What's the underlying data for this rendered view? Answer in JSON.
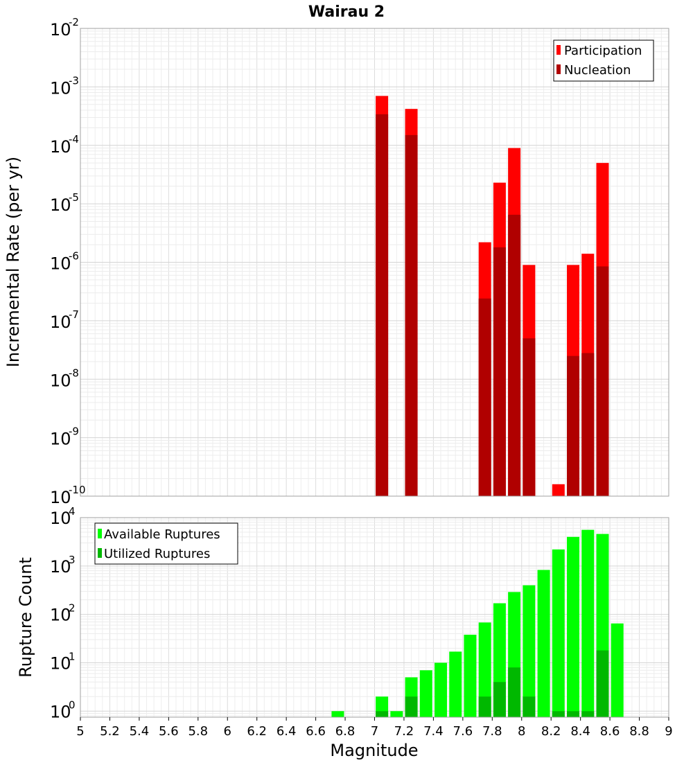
{
  "chart_data": [
    {
      "type": "bar",
      "title": "Wairau 2",
      "xlabel": "Magnitude",
      "ylabel": "Incremental Rate (per yr)",
      "yscale": "log",
      "ylim": [
        1e-10,
        0.01
      ],
      "xlim": [
        5,
        9
      ],
      "grid": true,
      "legend_position": "top-right",
      "ytick_labels": [
        {
          "base": "10",
          "exp": "-2"
        },
        {
          "base": "10",
          "exp": "-3"
        },
        {
          "base": "10",
          "exp": "-4"
        },
        {
          "base": "10",
          "exp": "-5"
        },
        {
          "base": "10",
          "exp": "-6"
        },
        {
          "base": "10",
          "exp": "-7"
        },
        {
          "base": "10",
          "exp": "-8"
        },
        {
          "base": "10",
          "exp": "-9"
        },
        {
          "base": "10",
          "exp": "-10"
        }
      ],
      "series": [
        {
          "name": "Participation",
          "color": "#ff0000",
          "points": [
            {
              "x": 7.05,
              "y": 0.0007
            },
            {
              "x": 7.25,
              "y": 0.00042
            },
            {
              "x": 7.75,
              "y": 2.2e-06
            },
            {
              "x": 7.85,
              "y": 2.3e-05
            },
            {
              "x": 7.95,
              "y": 9e-05
            },
            {
              "x": 8.05,
              "y": 9e-07
            },
            {
              "x": 8.25,
              "y": 1.6e-10
            },
            {
              "x": 8.35,
              "y": 9e-07
            },
            {
              "x": 8.45,
              "y": 1.4e-06
            },
            {
              "x": 8.55,
              "y": 5e-05
            }
          ]
        },
        {
          "name": "Nucleation",
          "color": "#b00000",
          "points": [
            {
              "x": 7.05,
              "y": 0.00034
            },
            {
              "x": 7.25,
              "y": 0.00015
            },
            {
              "x": 7.75,
              "y": 2.4e-07
            },
            {
              "x": 7.85,
              "y": 1.8e-06
            },
            {
              "x": 7.95,
              "y": 6.5e-06
            },
            {
              "x": 8.05,
              "y": 5e-08
            },
            {
              "x": 8.35,
              "y": 2.5e-08
            },
            {
              "x": 8.45,
              "y": 2.8e-08
            },
            {
              "x": 8.55,
              "y": 8.5e-07
            }
          ]
        }
      ]
    },
    {
      "type": "bar",
      "xlabel": "Magnitude",
      "ylabel": "Rupture Count",
      "yscale": "log",
      "ylim": [
        0.75,
        10000
      ],
      "xlim": [
        5,
        9
      ],
      "grid": true,
      "legend_position": "top-left",
      "xticks": [
        5,
        5.2,
        5.4,
        5.6,
        5.8,
        6,
        6.2,
        6.4,
        6.6,
        6.8,
        7,
        7.2,
        7.4,
        7.6,
        7.8,
        8,
        8.2,
        8.4,
        8.6,
        8.8,
        9
      ],
      "xtick_labels": [
        "5",
        "5.2",
        "5.4",
        "5.6",
        "5.8",
        "6",
        "6.2",
        "6.4",
        "6.6",
        "6.8",
        "7",
        "7.2",
        "7.4",
        "7.6",
        "7.8",
        "8",
        "8.2",
        "8.4",
        "8.6",
        "8.8",
        "9"
      ],
      "ytick_labels": [
        {
          "base": "10",
          "exp": "4"
        },
        {
          "base": "10",
          "exp": "3"
        },
        {
          "base": "10",
          "exp": "2"
        },
        {
          "base": "10",
          "exp": "1"
        },
        {
          "base": "10",
          "exp": "0"
        }
      ],
      "series": [
        {
          "name": "Available Ruptures",
          "color": "#00ff00",
          "points": [
            {
              "x": 6.75,
              "y": 1
            },
            {
              "x": 7.05,
              "y": 2
            },
            {
              "x": 7.15,
              "y": 1
            },
            {
              "x": 7.25,
              "y": 5
            },
            {
              "x": 7.35,
              "y": 7
            },
            {
              "x": 7.45,
              "y": 10
            },
            {
              "x": 7.55,
              "y": 17
            },
            {
              "x": 7.65,
              "y": 38
            },
            {
              "x": 7.75,
              "y": 68
            },
            {
              "x": 7.85,
              "y": 170
            },
            {
              "x": 7.95,
              "y": 290
            },
            {
              "x": 8.05,
              "y": 400
            },
            {
              "x": 8.15,
              "y": 830
            },
            {
              "x": 8.25,
              "y": 2200
            },
            {
              "x": 8.35,
              "y": 4000
            },
            {
              "x": 8.45,
              "y": 5600
            },
            {
              "x": 8.55,
              "y": 4600
            },
            {
              "x": 8.65,
              "y": 65
            }
          ]
        },
        {
          "name": "Utilized Ruptures",
          "color": "#00b800",
          "points": [
            {
              "x": 7.05,
              "y": 1
            },
            {
              "x": 7.25,
              "y": 2
            },
            {
              "x": 7.75,
              "y": 2
            },
            {
              "x": 7.85,
              "y": 4
            },
            {
              "x": 7.95,
              "y": 8
            },
            {
              "x": 8.05,
              "y": 2
            },
            {
              "x": 8.25,
              "y": 1
            },
            {
              "x": 8.35,
              "y": 1
            },
            {
              "x": 8.45,
              "y": 1
            },
            {
              "x": 8.55,
              "y": 18
            }
          ]
        }
      ]
    }
  ]
}
